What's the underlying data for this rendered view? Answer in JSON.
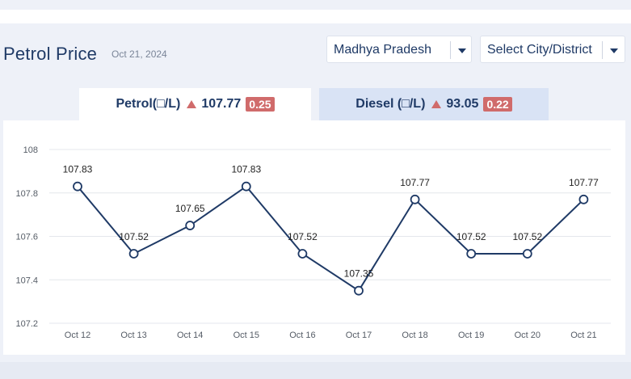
{
  "header": {
    "title": "Petrol Price",
    "date": "Oct 21, 2024",
    "state_select": {
      "value": "Madhya Pradesh"
    },
    "city_select": {
      "value": "Select City/District"
    }
  },
  "tabs": [
    {
      "label": "Petrol(□/L)",
      "price": "107.77",
      "change": "0.25",
      "active": true
    },
    {
      "label": "Diesel (□/L)",
      "price": "93.05",
      "change": "0.22",
      "active": false
    }
  ],
  "colors": {
    "line": "#1f3a66",
    "increase": "#d06b6b",
    "active_tab": "#ffffff",
    "inactive_tab": "#d9e3f5"
  },
  "icons": {
    "increase": "up-triangle-icon",
    "dropdown": "caret-down-icon"
  },
  "chart_data": {
    "type": "line",
    "categories": [
      "Oct 12",
      "Oct 13",
      "Oct 14",
      "Oct 15",
      "Oct 16",
      "Oct 17",
      "Oct 18",
      "Oct 19",
      "Oct 20",
      "Oct 21"
    ],
    "values": [
      107.83,
      107.52,
      107.65,
      107.83,
      107.52,
      107.35,
      107.77,
      107.52,
      107.52,
      107.77
    ],
    "data_labels": [
      "107.83",
      "107.52",
      "107.65",
      "107.83",
      "107.52",
      "107.35",
      "107.77",
      "107.52",
      "107.52",
      "107.77"
    ],
    "yticks": [
      107.2,
      107.4,
      107.6,
      107.8,
      108
    ],
    "ytick_labels": [
      "107.2",
      "107.4",
      "107.6",
      "107.8",
      "108"
    ],
    "ylim": [
      107.2,
      108
    ],
    "grid": true,
    "title": "",
    "xlabel": "",
    "ylabel": ""
  }
}
